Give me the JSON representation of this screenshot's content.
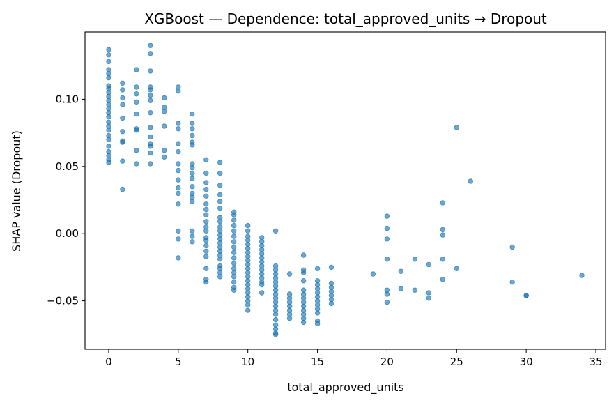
{
  "chart_data": {
    "type": "scatter",
    "title": "XGBoost — Dependence: total_approved_units → Dropout",
    "xlabel": "total_approved_units",
    "ylabel": "SHAP value (Dropout)",
    "xlim": [
      -1.7,
      35.7
    ],
    "ylim": [
      -0.086,
      0.15
    ],
    "xticks": [
      {
        "value": 0,
        "label": "0"
      },
      {
        "value": 5,
        "label": "5"
      },
      {
        "value": 10,
        "label": "10"
      },
      {
        "value": 15,
        "label": "15"
      },
      {
        "value": 20,
        "label": "20"
      },
      {
        "value": 25,
        "label": "25"
      },
      {
        "value": 30,
        "label": "30"
      },
      {
        "value": 35,
        "label": "35"
      }
    ],
    "yticks": [
      {
        "value": 0.1,
        "label": "0.10"
      },
      {
        "value": 0.05,
        "label": "0.05"
      },
      {
        "value": 0.0,
        "label": "0.00"
      },
      {
        "value": -0.05,
        "label": "−0.05"
      }
    ],
    "grid": false,
    "marker_color": "#1f77b4",
    "points": [
      [
        0,
        0.137
      ],
      [
        0,
        0.133
      ],
      [
        0,
        0.128
      ],
      [
        0,
        0.122
      ],
      [
        0,
        0.119
      ],
      [
        0,
        0.116
      ],
      [
        0,
        0.11
      ],
      [
        0,
        0.108
      ],
      [
        0,
        0.105
      ],
      [
        0,
        0.102
      ],
      [
        0,
        0.099
      ],
      [
        0,
        0.096
      ],
      [
        0,
        0.093
      ],
      [
        0,
        0.09
      ],
      [
        0,
        0.087
      ],
      [
        0,
        0.083
      ],
      [
        0,
        0.08
      ],
      [
        0,
        0.077
      ],
      [
        0,
        0.073
      ],
      [
        0,
        0.07
      ],
      [
        0,
        0.065
      ],
      [
        0,
        0.061
      ],
      [
        0,
        0.058
      ],
      [
        0,
        0.055
      ],
      [
        0,
        0.053
      ],
      [
        1,
        0.112
      ],
      [
        1,
        0.107
      ],
      [
        1,
        0.101
      ],
      [
        1,
        0.096
      ],
      [
        1,
        0.086
      ],
      [
        1,
        0.076
      ],
      [
        1,
        0.069
      ],
      [
        1,
        0.068
      ],
      [
        1,
        0.054
      ],
      [
        1,
        0.033
      ],
      [
        2,
        0.122
      ],
      [
        2,
        0.109
      ],
      [
        2,
        0.104
      ],
      [
        2,
        0.098
      ],
      [
        2,
        0.089
      ],
      [
        2,
        0.078
      ],
      [
        2,
        0.077
      ],
      [
        2,
        0.062
      ],
      [
        2,
        0.052
      ],
      [
        3,
        0.14
      ],
      [
        3,
        0.134
      ],
      [
        3,
        0.121
      ],
      [
        3,
        0.109
      ],
      [
        3,
        0.107
      ],
      [
        3,
        0.103
      ],
      [
        3,
        0.099
      ],
      [
        3,
        0.09
      ],
      [
        3,
        0.079
      ],
      [
        3,
        0.072
      ],
      [
        3,
        0.067
      ],
      [
        3,
        0.065
      ],
      [
        3,
        0.06
      ],
      [
        3,
        0.052
      ],
      [
        4,
        0.101
      ],
      [
        4,
        0.094
      ],
      [
        4,
        0.091
      ],
      [
        4,
        0.08
      ],
      [
        4,
        0.062
      ],
      [
        4,
        0.057
      ],
      [
        5,
        0.109
      ],
      [
        5,
        0.106
      ],
      [
        5,
        0.082
      ],
      [
        5,
        0.078
      ],
      [
        5,
        0.067
      ],
      [
        5,
        0.061
      ],
      [
        5,
        0.052
      ],
      [
        5,
        0.047
      ],
      [
        5,
        0.04
      ],
      [
        5,
        0.034
      ],
      [
        5,
        0.03
      ],
      [
        5,
        0.022
      ],
      [
        5,
        0.002
      ],
      [
        5,
        -0.004
      ],
      [
        5,
        -0.018
      ],
      [
        6,
        0.089
      ],
      [
        6,
        0.082
      ],
      [
        6,
        0.078
      ],
      [
        6,
        0.073
      ],
      [
        6,
        0.068
      ],
      [
        6,
        0.066
      ],
      [
        6,
        0.052
      ],
      [
        6,
        0.049
      ],
      [
        6,
        0.045
      ],
      [
        6,
        0.041
      ],
      [
        6,
        0.035
      ],
      [
        6,
        0.03
      ],
      [
        6,
        0.027
      ],
      [
        6,
        0.024
      ],
      [
        6,
        0.002
      ],
      [
        6,
        -0.002
      ],
      [
        6,
        -0.006
      ],
      [
        7,
        0.055
      ],
      [
        7,
        0.045
      ],
      [
        7,
        0.038
      ],
      [
        7,
        0.033
      ],
      [
        7,
        0.028
      ],
      [
        7,
        0.022
      ],
      [
        7,
        0.018
      ],
      [
        7,
        0.014
      ],
      [
        7,
        0.009
      ],
      [
        7,
        0.005
      ],
      [
        7,
        0.002
      ],
      [
        7,
        -0.003
      ],
      [
        7,
        -0.005
      ],
      [
        7,
        -0.009
      ],
      [
        7,
        -0.013
      ],
      [
        7,
        -0.017
      ],
      [
        7,
        -0.026
      ],
      [
        7,
        -0.034
      ],
      [
        7,
        -0.036
      ],
      [
        8,
        0.053
      ],
      [
        8,
        0.045
      ],
      [
        8,
        0.036
      ],
      [
        8,
        0.029
      ],
      [
        8,
        0.024
      ],
      [
        8,
        0.019
      ],
      [
        8,
        0.012
      ],
      [
        8,
        0.009
      ],
      [
        8,
        0.005
      ],
      [
        8,
        0.002
      ],
      [
        8,
        -0.001
      ],
      [
        8,
        -0.004
      ],
      [
        8,
        -0.007
      ],
      [
        8,
        -0.01
      ],
      [
        8,
        -0.013
      ],
      [
        8,
        -0.016
      ],
      [
        8,
        -0.019
      ],
      [
        8,
        -0.024
      ],
      [
        8,
        -0.026
      ],
      [
        8,
        -0.029
      ],
      [
        8,
        -0.032
      ],
      [
        9,
        0.016
      ],
      [
        9,
        0.014
      ],
      [
        9,
        0.01
      ],
      [
        9,
        0.006
      ],
      [
        9,
        0.002
      ],
      [
        9,
        -0.002
      ],
      [
        9,
        -0.006
      ],
      [
        9,
        -0.01
      ],
      [
        9,
        -0.014
      ],
      [
        9,
        -0.018
      ],
      [
        9,
        -0.022
      ],
      [
        9,
        -0.026
      ],
      [
        9,
        -0.029
      ],
      [
        9,
        -0.032
      ],
      [
        9,
        -0.036
      ],
      [
        9,
        -0.04
      ],
      [
        9,
        -0.042
      ],
      [
        10,
        0.006
      ],
      [
        10,
        0.002
      ],
      [
        10,
        -0.002
      ],
      [
        10,
        -0.005
      ],
      [
        10,
        -0.008
      ],
      [
        10,
        -0.011
      ],
      [
        10,
        -0.014
      ],
      [
        10,
        -0.017
      ],
      [
        10,
        -0.02
      ],
      [
        10,
        -0.023
      ],
      [
        10,
        -0.026
      ],
      [
        10,
        -0.029
      ],
      [
        10,
        -0.032
      ],
      [
        10,
        -0.035
      ],
      [
        10,
        -0.038
      ],
      [
        10,
        -0.041
      ],
      [
        10,
        -0.044
      ],
      [
        10,
        -0.047
      ],
      [
        10,
        -0.05
      ],
      [
        10,
        -0.053
      ],
      [
        10,
        -0.057
      ],
      [
        11,
        -0.003
      ],
      [
        11,
        -0.006
      ],
      [
        11,
        -0.009
      ],
      [
        11,
        -0.012
      ],
      [
        11,
        -0.015
      ],
      [
        11,
        -0.018
      ],
      [
        11,
        -0.021
      ],
      [
        11,
        -0.024
      ],
      [
        11,
        -0.027
      ],
      [
        11,
        -0.03
      ],
      [
        11,
        -0.033
      ],
      [
        11,
        -0.036
      ],
      [
        11,
        -0.038
      ],
      [
        11,
        -0.044
      ],
      [
        12,
        0.002
      ],
      [
        12,
        -0.024
      ],
      [
        12,
        -0.027
      ],
      [
        12,
        -0.03
      ],
      [
        12,
        -0.033
      ],
      [
        12,
        -0.036
      ],
      [
        12,
        -0.039
      ],
      [
        12,
        -0.042
      ],
      [
        12,
        -0.045
      ],
      [
        12,
        -0.048
      ],
      [
        12,
        -0.051
      ],
      [
        12,
        -0.054
      ],
      [
        12,
        -0.057
      ],
      [
        12,
        -0.06
      ],
      [
        12,
        -0.064
      ],
      [
        12,
        -0.068
      ],
      [
        12,
        -0.071
      ],
      [
        12,
        -0.074
      ],
      [
        12,
        -0.075
      ],
      [
        13,
        -0.03
      ],
      [
        13,
        -0.045
      ],
      [
        13,
        -0.048
      ],
      [
        13,
        -0.051
      ],
      [
        13,
        -0.054
      ],
      [
        13,
        -0.057
      ],
      [
        13,
        -0.06
      ],
      [
        13,
        -0.063
      ],
      [
        14,
        -0.016
      ],
      [
        14,
        -0.027
      ],
      [
        14,
        -0.029
      ],
      [
        14,
        -0.035
      ],
      [
        14,
        -0.042
      ],
      [
        14,
        -0.045
      ],
      [
        14,
        -0.048
      ],
      [
        14,
        -0.051
      ],
      [
        14,
        -0.054
      ],
      [
        14,
        -0.057
      ],
      [
        14,
        -0.06
      ],
      [
        14,
        -0.063
      ],
      [
        14,
        -0.066
      ],
      [
        15,
        -0.026
      ],
      [
        15,
        -0.035
      ],
      [
        15,
        -0.038
      ],
      [
        15,
        -0.041
      ],
      [
        15,
        -0.044
      ],
      [
        15,
        -0.047
      ],
      [
        15,
        -0.05
      ],
      [
        15,
        -0.053
      ],
      [
        15,
        -0.056
      ],
      [
        15,
        -0.059
      ],
      [
        15,
        -0.065
      ],
      [
        15,
        -0.067
      ],
      [
        16,
        -0.025
      ],
      [
        16,
        -0.037
      ],
      [
        16,
        -0.04
      ],
      [
        16,
        -0.043
      ],
      [
        16,
        -0.046
      ],
      [
        16,
        -0.049
      ],
      [
        16,
        -0.052
      ],
      [
        19,
        -0.03
      ],
      [
        20,
        0.013
      ],
      [
        20,
        0.004
      ],
      [
        20,
        -0.004
      ],
      [
        20,
        -0.019
      ],
      [
        20,
        -0.042
      ],
      [
        20,
        -0.045
      ],
      [
        20,
        -0.051
      ],
      [
        21,
        -0.028
      ],
      [
        21,
        -0.041
      ],
      [
        22,
        -0.019
      ],
      [
        22,
        -0.042
      ],
      [
        23,
        -0.023
      ],
      [
        23,
        -0.044
      ],
      [
        23,
        -0.048
      ],
      [
        24,
        0.023
      ],
      [
        24,
        0.003
      ],
      [
        24,
        -0.001
      ],
      [
        24,
        -0.019
      ],
      [
        24,
        -0.034
      ],
      [
        25,
        0.079
      ],
      [
        25,
        -0.026
      ],
      [
        26,
        0.039
      ],
      [
        29,
        -0.01
      ],
      [
        29,
        -0.036
      ],
      [
        30,
        -0.046
      ],
      [
        30,
        -0.046
      ],
      [
        34,
        -0.031
      ]
    ]
  }
}
